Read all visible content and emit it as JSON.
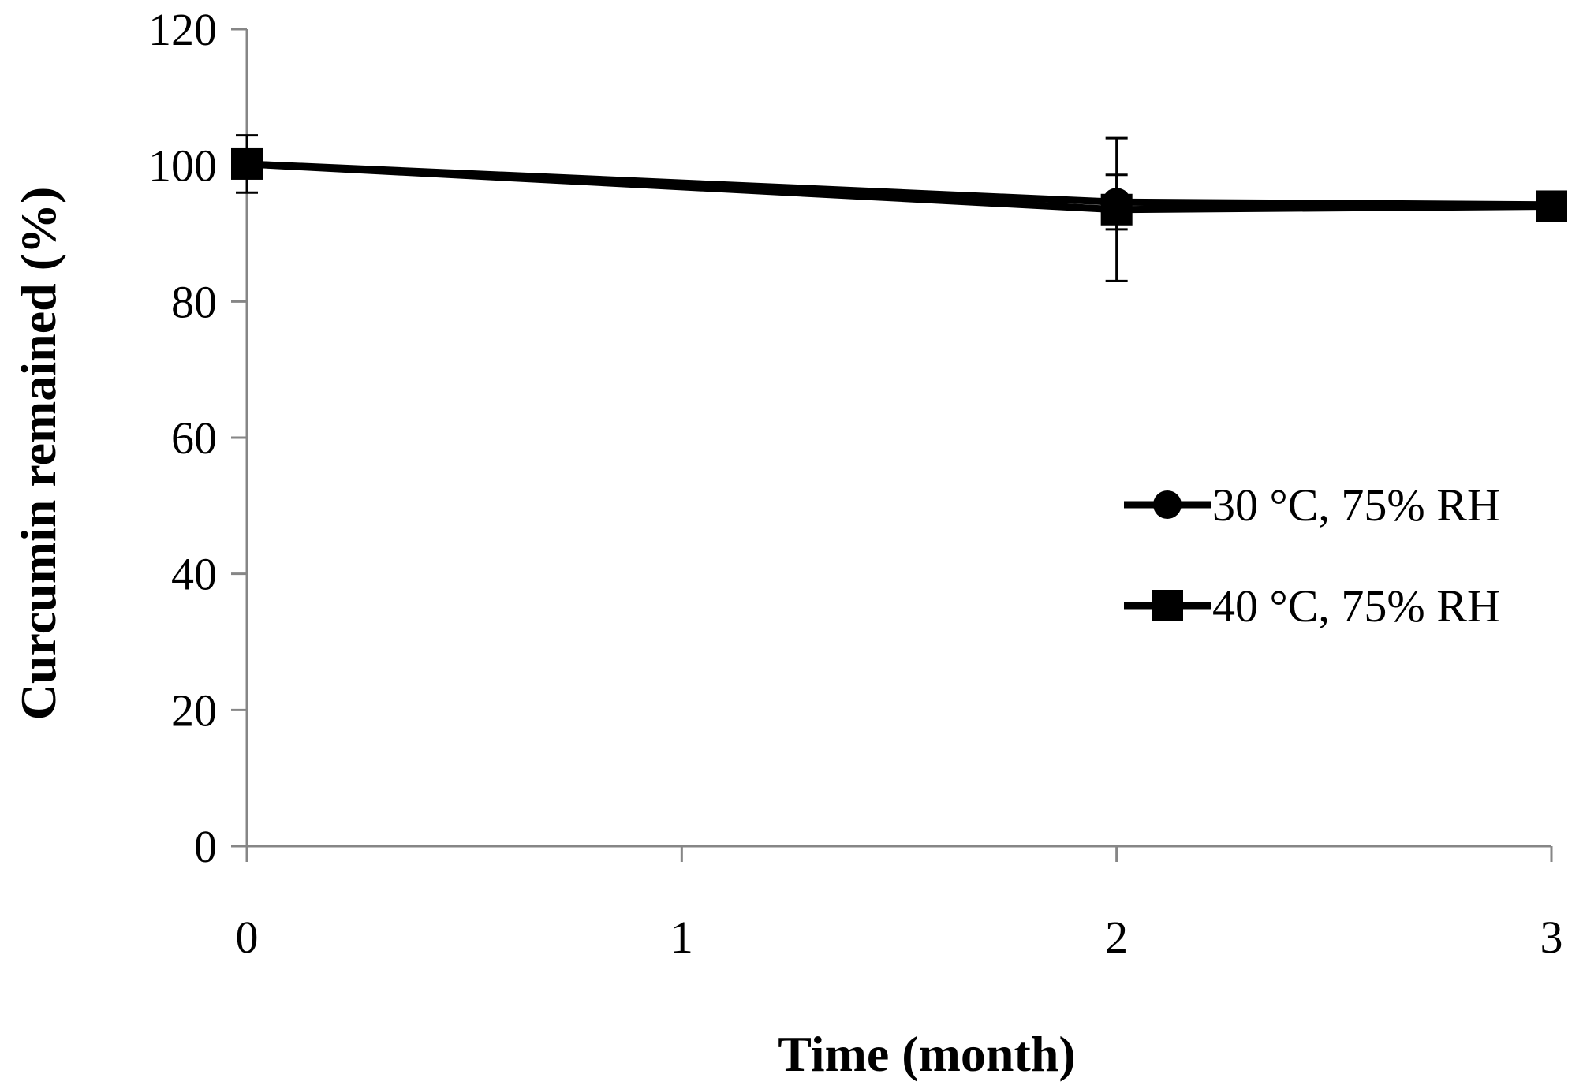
{
  "chart_data": {
    "type": "line",
    "title": "",
    "xlabel": "Time (month)",
    "ylabel": "Curcumin remained (%)",
    "x": [
      0,
      1,
      2,
      3
    ],
    "x_tick_labels": [
      "0",
      "1",
      "2",
      "3"
    ],
    "y_tick_labels": [
      "0",
      "20",
      "40",
      "60",
      "80",
      "100",
      "120"
    ],
    "xlim": [
      0,
      3
    ],
    "ylim": [
      0,
      120
    ],
    "grid": false,
    "legend_position": "right",
    "series": [
      {
        "name": "30 °C, 75% RH",
        "marker": "circle",
        "x": [
          0,
          2,
          3
        ],
        "values": [
          100.2,
          94.6,
          94.2
        ],
        "error": [
          1.5,
          4.0,
          1.2
        ]
      },
      {
        "name": "40 °C, 75% RH",
        "marker": "square",
        "x": [
          0,
          2,
          3
        ],
        "values": [
          100.2,
          93.5,
          94.0
        ],
        "error": [
          4.2,
          10.5,
          2.0
        ]
      }
    ]
  }
}
